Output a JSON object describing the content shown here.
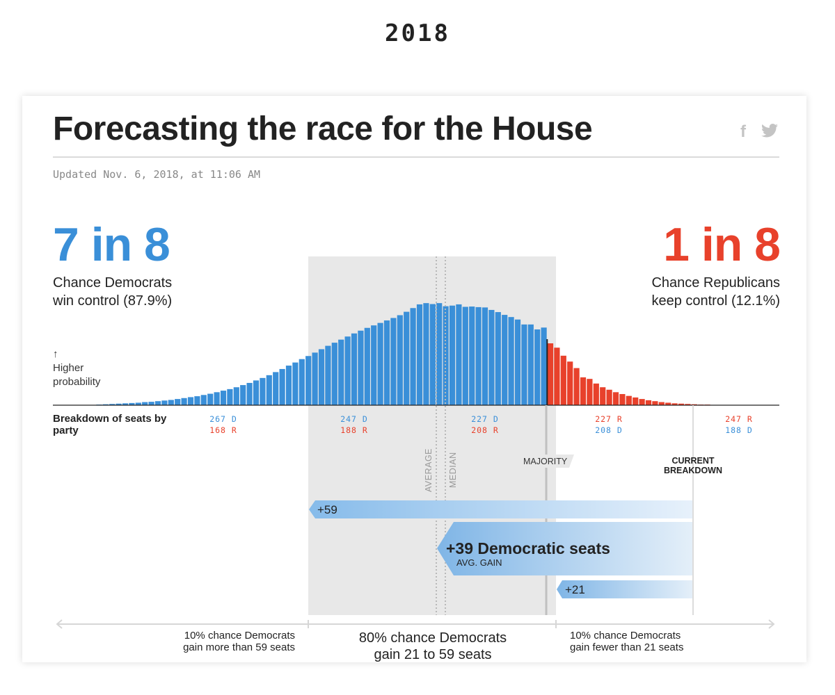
{
  "year": "2018",
  "header": {
    "title": "Forecasting the race for the House",
    "icons": [
      "facebook-icon",
      "twitter-icon"
    ],
    "updated": "Updated Nov. 6, 2018, at 11:06 AM"
  },
  "headline": {
    "dem_odds": "7 in 8",
    "dem_line1": "Chance Democrats",
    "dem_line2": "win control (87.9%)",
    "rep_odds": "1 in 8",
    "rep_line1": "Chance Republicans",
    "rep_line2": "keep control (12.1%)"
  },
  "labels": {
    "higher_arrow": "↑",
    "higher_1": "Higher",
    "higher_2": "probability",
    "breakdown": "Breakdown of seats by party",
    "average": "AVERAGE",
    "median": "MEDIAN",
    "majority": "MAJORITY",
    "current_1": "CURRENT",
    "current_2": "BREAKDOWN",
    "high_gain": "+59",
    "avg_gain": "+39 Democratic seats",
    "avg_gain_sub": "AVG. GAIN",
    "low_gain": "+21",
    "range_left_1": "10% chance Democrats",
    "range_left_2": "gain more than 59 seats",
    "range_mid_1": "80% chance Democrats",
    "range_mid_2": "gain 21 to 59 seats",
    "range_right_1": "10% chance Democrats",
    "range_right_2": "gain fewer than 21 seats"
  },
  "colors": {
    "dem": "#3a8fd8",
    "rep": "#e8412b",
    "band": "#e8e8e8"
  },
  "chart_data": {
    "type": "bar",
    "xlabel": "Breakdown of seats by party",
    "x_axis_reversed": true,
    "x_tick_labels": [
      {
        "dem": "267 D",
        "rep": "168 R",
        "dem_seats": 267
      },
      {
        "dem": "247 D",
        "rep": "188 R",
        "dem_seats": 247
      },
      {
        "dem": "227 D",
        "rep": "208 R",
        "dem_seats": 227
      },
      {
        "rep": "227 R",
        "dem": "208 D",
        "dem_seats": 208
      },
      {
        "rep": "247 R",
        "dem": "188 D",
        "dem_seats": 188
      }
    ],
    "majority_dem_seats": 218,
    "current_dem_seats": 195,
    "average_dem_seats": 234,
    "median_dem_seats": 233,
    "range_80_dem_seats": [
      216,
      254
    ],
    "series": [
      {
        "party": "Democratic majority",
        "dem_seats": [
          286,
          285,
          284,
          283,
          282,
          281,
          280,
          279,
          278,
          277,
          276,
          275,
          274,
          273,
          272,
          271,
          270,
          269,
          268,
          267,
          266,
          265,
          264,
          263,
          262,
          261,
          260,
          259,
          258,
          257,
          256,
          255,
          254,
          253,
          252,
          251,
          250,
          249,
          248,
          247,
          246,
          245,
          244,
          243,
          242,
          241,
          240,
          239,
          238,
          237,
          236,
          235,
          234,
          233,
          232,
          231,
          230,
          229,
          228,
          227,
          226,
          225,
          224,
          223,
          222,
          221,
          220,
          219,
          218
        ],
        "values": [
          0.02,
          0.03,
          0.04,
          0.05,
          0.06,
          0.07,
          0.08,
          0.1,
          0.11,
          0.13,
          0.15,
          0.17,
          0.2,
          0.23,
          0.26,
          0.29,
          0.33,
          0.37,
          0.42,
          0.47,
          0.52,
          0.58,
          0.65,
          0.72,
          0.8,
          0.88,
          0.97,
          1.07,
          1.17,
          1.28,
          1.38,
          1.49,
          1.59,
          1.7,
          1.81,
          1.92,
          2.02,
          2.12,
          2.22,
          2.32,
          2.41,
          2.5,
          2.58,
          2.66,
          2.74,
          2.82,
          2.91,
          3.02,
          3.14,
          3.26,
          3.3,
          3.27,
          3.3,
          3.2,
          3.22,
          3.26,
          3.18,
          3.19,
          3.17,
          3.16,
          3.08,
          3.01,
          2.92,
          2.85,
          2.77,
          2.61,
          2.61,
          2.45,
          2.51
        ]
      },
      {
        "party": "Republican majority",
        "dem_seats": [
          217,
          216,
          215,
          214,
          213,
          212,
          211,
          210,
          209,
          208,
          207,
          206,
          205,
          204,
          203,
          202,
          201,
          200,
          199,
          198,
          197,
          196,
          195,
          194,
          193,
          192,
          191,
          190,
          189,
          188,
          187,
          186,
          185
        ],
        "values": [
          2.0,
          1.86,
          1.6,
          1.41,
          1.2,
          0.9,
          0.85,
          0.7,
          0.58,
          0.5,
          0.42,
          0.36,
          0.3,
          0.25,
          0.2,
          0.16,
          0.13,
          0.1,
          0.08,
          0.06,
          0.05,
          0.04,
          0.03,
          0.02,
          0.02,
          0.01,
          0.01,
          0.01,
          0.01,
          0.005,
          0.005,
          0.005,
          0.005
        ]
      }
    ]
  }
}
